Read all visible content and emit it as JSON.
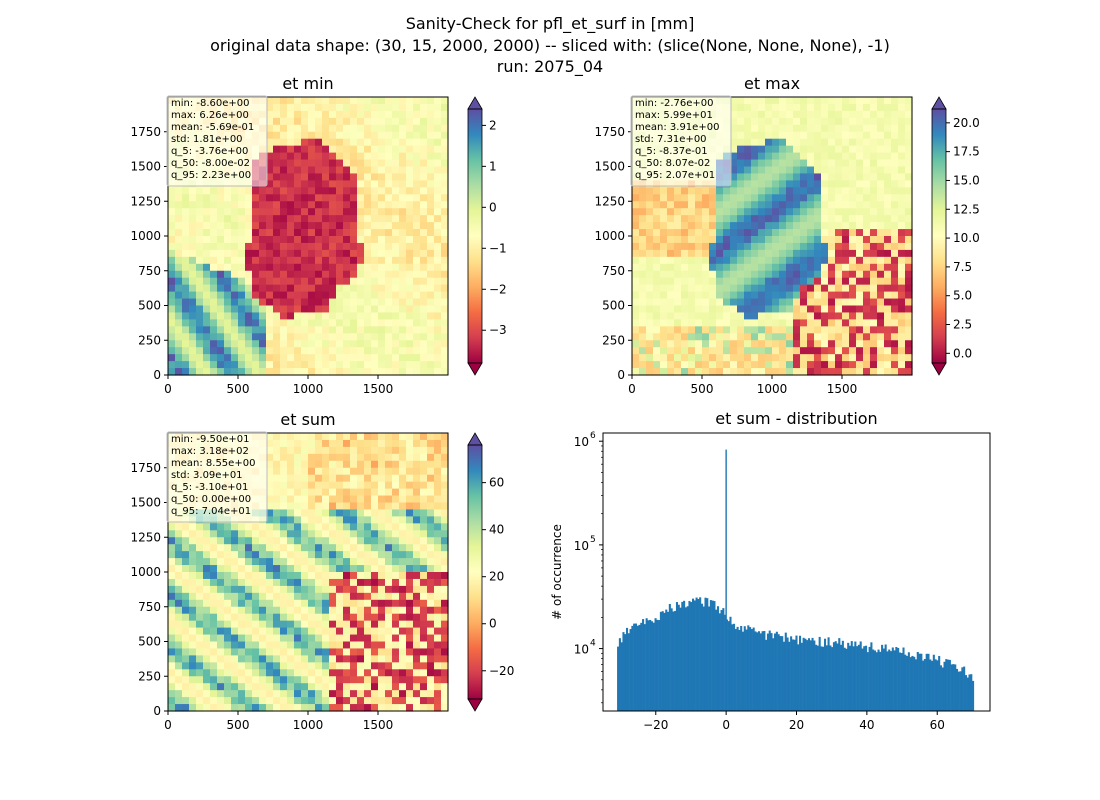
{
  "suptitle": [
    "Sanity-Check for pfl_et_surf in [mm]",
    "original data shape: (30, 15, 2000, 2000) -- sliced with: (slice(None, None, None), -1)",
    "run: 2075_04"
  ],
  "chart_data": [
    {
      "type": "heatmap",
      "title": "et min",
      "xlim": [
        0,
        2000
      ],
      "ylim": [
        0,
        2000
      ],
      "xticks": [
        0,
        500,
        1000,
        1500
      ],
      "yticks": [
        0,
        250,
        500,
        750,
        1000,
        1250,
        1500,
        1750
      ],
      "colormap": "Spectral",
      "colorbar_range": [
        -3.8,
        2.4
      ],
      "colorbar_ticks": [
        "2",
        "1",
        "0",
        "−1",
        "−2",
        "−3"
      ],
      "colorbar_tick_values": [
        2,
        1,
        0,
        -1,
        -2,
        -3
      ],
      "stats": [
        "min: -8.60e+00",
        "max: 6.26e+00",
        "mean: -5.69e-01",
        "std: 1.81e+00",
        "q_5: -3.76e+00",
        "q_50: -8.00e-02",
        "q_95: 2.23e+00"
      ]
    },
    {
      "type": "heatmap",
      "title": "et max",
      "xlim": [
        0,
        2000
      ],
      "ylim": [
        0,
        2000
      ],
      "xticks": [
        0,
        500,
        1000,
        1500
      ],
      "yticks": [
        0,
        250,
        500,
        750,
        1000,
        1250,
        1500,
        1750
      ],
      "colormap": "Spectral",
      "colorbar_range": [
        -0.84,
        21.2
      ],
      "colorbar_ticks": [
        "20.0",
        "17.5",
        "15.0",
        "12.5",
        "10.0",
        "7.5",
        "5.0",
        "2.5",
        "0.0"
      ],
      "colorbar_tick_values": [
        20,
        17.5,
        15,
        12.5,
        10,
        7.5,
        5,
        2.5,
        0
      ],
      "stats": [
        "min: -2.76e+00",
        "max: 5.99e+01",
        "mean: 3.91e+00",
        "std: 7.31e+00",
        "q_5: -8.37e-01",
        "q_50: 8.07e-02",
        "q_95: 2.07e+01"
      ]
    },
    {
      "type": "heatmap",
      "title": "et sum",
      "xlim": [
        0,
        2000
      ],
      "ylim": [
        0,
        2000
      ],
      "xticks": [
        0,
        500,
        1000,
        1500
      ],
      "yticks": [
        0,
        250,
        500,
        750,
        1000,
        1250,
        1500,
        1750
      ],
      "colormap": "Spectral",
      "colorbar_range": [
        -32,
        76
      ],
      "colorbar_ticks": [
        "60",
        "40",
        "20",
        "0",
        "−20"
      ],
      "colorbar_tick_values": [
        60,
        40,
        20,
        0,
        -20
      ],
      "stats": [
        "min: -9.50e+01",
        "max: 3.18e+02",
        "mean: 8.55e+00",
        "std: 3.09e+01",
        "q_5: -3.10e+01",
        "q_50: 0.00e+00",
        "q_95: 7.04e+01"
      ]
    },
    {
      "type": "bar",
      "title": "et sum - distribution",
      "ylabel": "# of occurrence",
      "yscale": "log",
      "xlim": [
        -35,
        75
      ],
      "ylim": [
        2500,
        1200000
      ],
      "xticks": [
        "−20",
        "0",
        "20",
        "40",
        "60"
      ],
      "xtick_values": [
        -20,
        0,
        20,
        40,
        60
      ],
      "yticks": [
        "10",
        "10",
        "10"
      ],
      "ytick_exps": [
        "4",
        "5",
        "6"
      ],
      "ytick_values": [
        10000,
        100000,
        1000000
      ],
      "color": "#1f77b4",
      "bin_range": [
        -31,
        70.4
      ],
      "peak": {
        "x": 0,
        "value": 830000
      },
      "segments": [
        {
          "x": -31,
          "v": 11000
        },
        {
          "x": -28,
          "v": 14500
        },
        {
          "x": -24,
          "v": 17000
        },
        {
          "x": -20,
          "v": 20500
        },
        {
          "x": -16,
          "v": 24500
        },
        {
          "x": -12,
          "v": 27500
        },
        {
          "x": -8,
          "v": 29500
        },
        {
          "x": -5,
          "v": 27500
        },
        {
          "x": -2,
          "v": 25000
        },
        {
          "x": 0,
          "v": 21000
        },
        {
          "x": 2,
          "v": 17000
        },
        {
          "x": 10,
          "v": 14000
        },
        {
          "x": 20,
          "v": 12500
        },
        {
          "x": 30,
          "v": 11500
        },
        {
          "x": 40,
          "v": 10500
        },
        {
          "x": 50,
          "v": 9200
        },
        {
          "x": 60,
          "v": 7800
        },
        {
          "x": 66,
          "v": 6500
        },
        {
          "x": 70.4,
          "v": 5200
        }
      ]
    }
  ]
}
